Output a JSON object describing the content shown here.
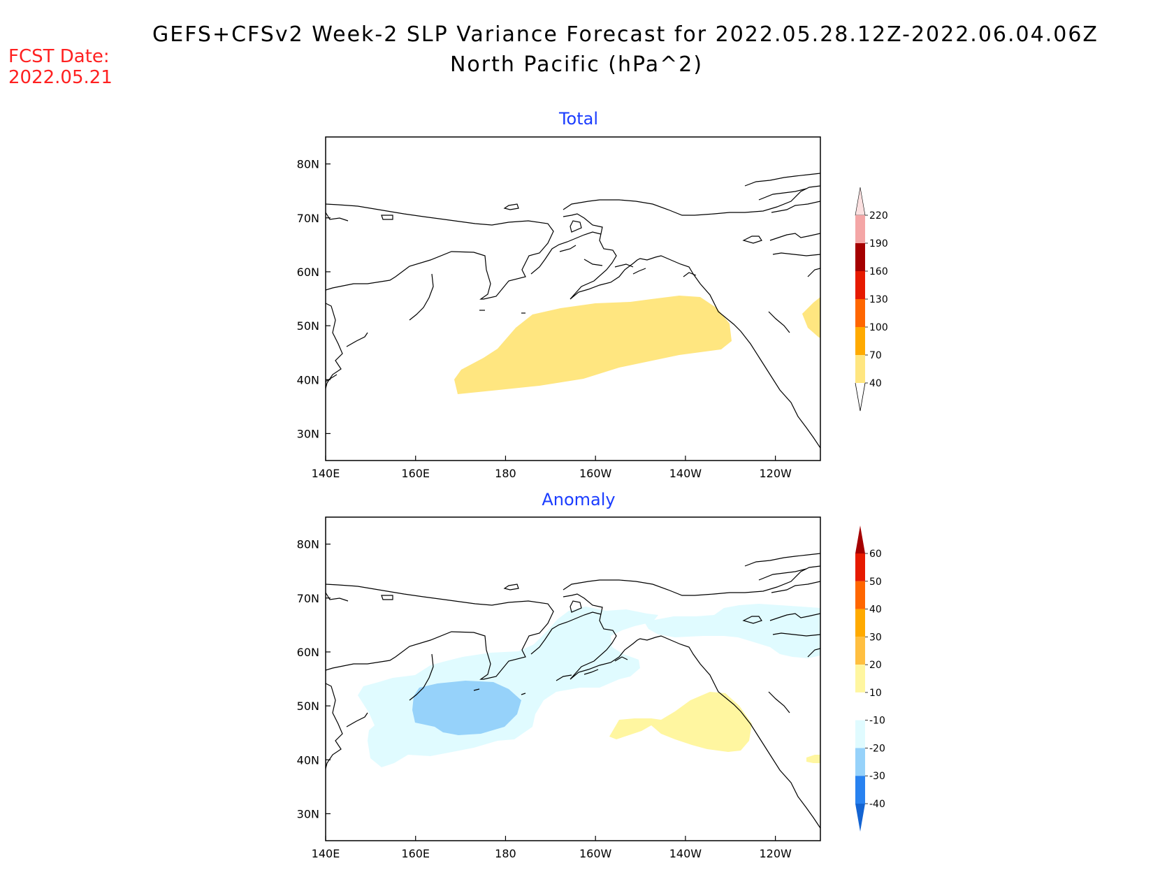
{
  "title": {
    "line1": "GEFS+CFSv2 Week-2 SLP Variance Forecast for 2022.05.28.12Z-2022.06.04.06Z",
    "line2": "North Pacific (hPa^2)"
  },
  "forecast_date": {
    "label": "FCST Date:",
    "value": "2022.05.21"
  },
  "axes": {
    "lat_ticks": [
      "80N",
      "70N",
      "60N",
      "50N",
      "40N",
      "30N"
    ],
    "lon_ticks": [
      "140E",
      "160E",
      "180",
      "160W",
      "140W",
      "120W"
    ],
    "lat_values": [
      80,
      70,
      60,
      50,
      40,
      30
    ],
    "lon_values": [
      140,
      160,
      180,
      200,
      220,
      240
    ],
    "lat_range": [
      25,
      85
    ],
    "lon_range": [
      140,
      250
    ]
  },
  "panels": [
    {
      "title": "Total",
      "colorbar": {
        "labels": [
          "40",
          "70",
          "100",
          "130",
          "160",
          "190",
          "220"
        ],
        "colors": [
          "#ffe680",
          "#ffaa00",
          "#ff6600",
          "#e61a00",
          "#a50000",
          "#f4a6a6",
          "#fbe0e0"
        ]
      }
    },
    {
      "title": "Anomaly",
      "colorbar": {
        "labels": [
          "60",
          "50",
          "40",
          "30",
          "20",
          "10",
          "-10",
          "-20",
          "-30",
          "-40"
        ],
        "colors_top_to_bottom": [
          "#a50000",
          "#e61a00",
          "#ff6600",
          "#ffaa00",
          "#ffbf40",
          "#fff6a0",
          "#ffffff",
          "#e0fbff",
          "#96d2fa",
          "#2882f0",
          "#1464d2"
        ]
      }
    }
  ],
  "chart_data": [
    {
      "type": "map",
      "title": "Total",
      "region": "North Pacific",
      "units": "hPa^2",
      "shaded_regions": [
        {
          "level": "40-70",
          "color": "#ffe680",
          "lon_range": [
            171,
            230
          ],
          "lat_range": [
            38,
            56
          ]
        },
        {
          "level": "40-70",
          "color": "#ffe680",
          "lon_range": [
            245,
            250
          ],
          "lat_range": [
            48,
            55
          ]
        }
      ]
    },
    {
      "type": "map",
      "title": "Anomaly",
      "region": "North Pacific",
      "units": "hPa^2",
      "shaded_regions": [
        {
          "level": "-20 to -10",
          "color": "#e0fbff",
          "lon_range": [
            146,
            215
          ],
          "lat_range": [
            39,
            67
          ]
        },
        {
          "level": "-20 to -10",
          "color": "#e0fbff",
          "lon_range": [
            210,
            250
          ],
          "lat_range": [
            58,
            69
          ]
        },
        {
          "level": "-30 to -20",
          "color": "#96d2fa",
          "lon_range": [
            160,
            184
          ],
          "lat_range": [
            43,
            53
          ]
        },
        {
          "level": "10-20",
          "color": "#fff6a0",
          "lon_range": [
            204,
            234
          ],
          "lat_range": [
            42,
            53
          ]
        },
        {
          "level": "10-20",
          "color": "#fff6a0",
          "lon_range": [
            248,
            250
          ],
          "lat_range": [
            40,
            41
          ]
        }
      ]
    }
  ]
}
